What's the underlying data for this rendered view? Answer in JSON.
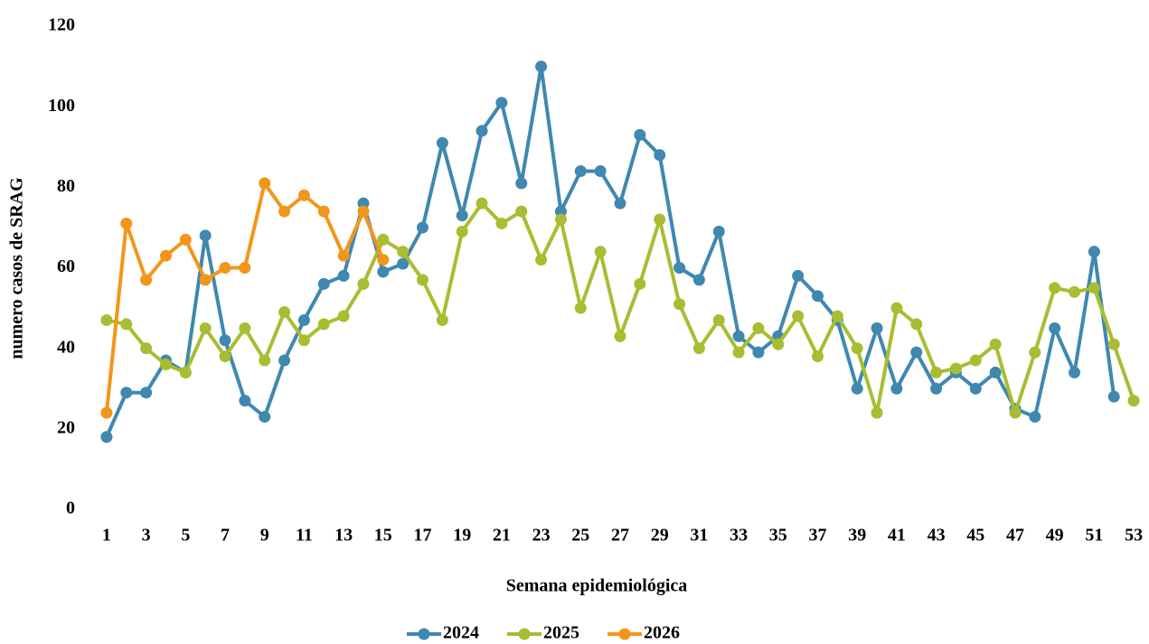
{
  "chart_data": {
    "type": "line",
    "x_label": "Semana epidemiológica",
    "y_label": "numero casos de SRAG",
    "categories": [
      "1",
      null,
      "3",
      null,
      "5",
      null,
      "7",
      null,
      "9",
      null,
      "11",
      null,
      "13",
      null,
      "15",
      null,
      "17",
      null,
      "19",
      null,
      "21",
      null,
      "23",
      null,
      "25",
      null,
      "27",
      null,
      "29",
      null,
      "31",
      null,
      "33",
      null,
      "35",
      null,
      "37",
      null,
      "39",
      null,
      "41",
      null,
      "43",
      null,
      "45",
      null,
      "47",
      null,
      "49",
      null,
      "51",
      null,
      "53"
    ],
    "series": [
      {
        "name": "2024",
        "color": "#3f88b0",
        "values": [
          18,
          29,
          29,
          37,
          34,
          68,
          42,
          27,
          23,
          37,
          47,
          56,
          58,
          76,
          59,
          61,
          70,
          91,
          73,
          94,
          101,
          81,
          110,
          74,
          84,
          84,
          76,
          93,
          88,
          60,
          57,
          69,
          43,
          39,
          43,
          58,
          53,
          47,
          30,
          45,
          30,
          39,
          30,
          34,
          30,
          34,
          25,
          23,
          45,
          34,
          64,
          28,
          null
        ]
      },
      {
        "name": "2025",
        "color": "#a9bd32",
        "values": [
          47,
          46,
          40,
          36,
          34,
          45,
          38,
          45,
          37,
          49,
          42,
          46,
          48,
          56,
          67,
          64,
          57,
          47,
          69,
          76,
          71,
          74,
          62,
          72,
          50,
          64,
          43,
          56,
          72,
          51,
          40,
          47,
          39,
          45,
          41,
          48,
          38,
          48,
          40,
          24,
          50,
          46,
          34,
          35,
          37,
          41,
          24,
          39,
          55,
          54,
          55,
          41,
          27
        ]
      },
      {
        "name": "2026",
        "color": "#f2961b",
        "values": [
          24,
          71,
          57,
          63,
          67,
          57,
          60,
          60,
          81,
          74,
          78,
          74,
          63,
          74,
          62,
          null,
          null,
          null,
          null,
          null,
          null,
          null,
          null,
          null,
          null,
          null,
          null,
          null,
          null,
          null,
          null,
          null,
          null,
          null,
          null,
          null,
          null,
          null,
          null,
          null,
          null,
          null,
          null,
          null,
          null,
          null,
          null,
          null,
          null,
          null,
          null,
          null,
          null
        ]
      }
    ],
    "ylim": [
      0,
      120
    ],
    "yticks": [
      0,
      20,
      40,
      60,
      80,
      100,
      120
    ],
    "grid": false,
    "legend": "bottom"
  }
}
